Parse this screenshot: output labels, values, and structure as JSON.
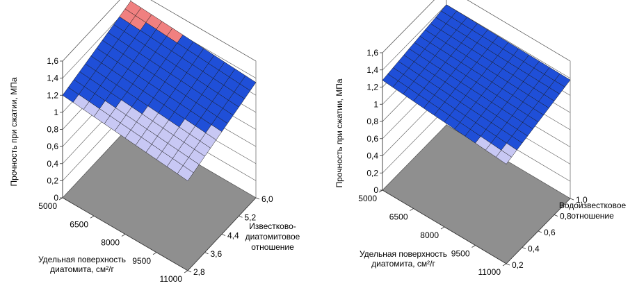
{
  "chart_data": [
    {
      "type": "surface",
      "zlabel": "Прочность при сжатии, МПа",
      "xlabel": [
        "Удельная поверхность",
        "диатомита, см²/г"
      ],
      "ylabel": [
        "Известково-",
        "диатомитовое",
        "отношение"
      ],
      "x_ticks": [
        "5000",
        "6500",
        "8000",
        "9500",
        "11000"
      ],
      "y_ticks": [
        "2,8",
        "3,6",
        "4,4",
        "5,2",
        "6,0"
      ],
      "z_ticks": [
        "0",
        "0,2",
        "0,4",
        "0,6",
        "0,8",
        "1",
        "1,2",
        "1,4",
        "1,6"
      ],
      "xlim": [
        5000,
        11000
      ],
      "ylim": [
        2.8,
        6.0
      ],
      "zlim": [
        0,
        1.6
      ],
      "band_colors": {
        "1-1.2": "#c8c8f4",
        "1.2-1.4": "#1f4fd8",
        "1.4-1.6": "#f08080"
      },
      "floor_color": "#8f8f8f",
      "corner_values": {
        "x_min_y_max": 1.45,
        "x_max_y_max": 1.35,
        "x_min_y_min": 1.2,
        "x_max_y_min": 1.05
      }
    },
    {
      "type": "surface",
      "zlabel": "Прочность при сжатии, МПа",
      "xlabel": [
        "Удельная поверхность",
        "диатомита, см²/г"
      ],
      "ylabel": [
        "Водоизвестковое",
        "отношение"
      ],
      "x_ticks": [
        "5000",
        "6500",
        "8000",
        "9500",
        "11000"
      ],
      "y_ticks": [
        "0,2",
        "0,4",
        "0,6",
        "0,8",
        "1,0"
      ],
      "z_ticks": [
        "0",
        "0,2",
        "0,4",
        "0,6",
        "0,8",
        "1",
        "1,2",
        "1,4",
        "1,6"
      ],
      "xlim": [
        5000,
        11000
      ],
      "ylim": [
        0.2,
        1.0
      ],
      "zlim": [
        0,
        1.6
      ],
      "band_colors": {
        "1-1.2": "#c8c8f4",
        "1.2-1.4": "#1f4fd8",
        "1.4-1.6": "#f08080"
      },
      "floor_color": "#8f8f8f",
      "corner_values": {
        "x_min_y_max": 1.4,
        "x_max_y_max": 1.38,
        "x_min_y_min": 1.28,
        "x_max_y_min": 1.16
      }
    }
  ]
}
